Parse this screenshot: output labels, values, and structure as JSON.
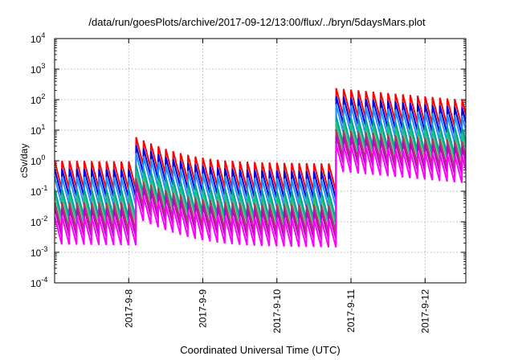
{
  "chart_data": {
    "type": "line",
    "title": "/data/run/goesPlots/archive/2017-09-12/13:00/flux/../bryn/5daysMars.plot",
    "xlabel": "Coordinated Universal Time (UTC)",
    "ylabel": "cSv/day",
    "yscale": "log",
    "ylim_exp": [
      -4,
      4
    ],
    "y_ticks": [
      {
        "base": "10",
        "exp": "-4"
      },
      {
        "base": "10",
        "exp": "-3"
      },
      {
        "base": "10",
        "exp": "-2"
      },
      {
        "base": "10",
        "exp": "-1"
      },
      {
        "base": "10",
        "exp": "0"
      },
      {
        "base": "10",
        "exp": "1"
      },
      {
        "base": "10",
        "exp": "2"
      },
      {
        "base": "10",
        "exp": "3"
      },
      {
        "base": "10",
        "exp": "4"
      }
    ],
    "xlim_days": [
      -1.0,
      4.55
    ],
    "x_ticks": [
      {
        "label": "2017-9-8",
        "day": 0
      },
      {
        "label": "2017-9-9",
        "day": 1
      },
      {
        "label": "2017-9-10",
        "day": 2
      },
      {
        "label": "2017-9-11",
        "day": 3
      },
      {
        "label": "2017-9-12",
        "day": 4
      }
    ],
    "grid": true,
    "sawtooth": {
      "period_days": 0.1,
      "events": [
        {
          "day": 0.0,
          "amp": 8
        },
        {
          "day": 2.75,
          "amp": 300
        }
      ],
      "decay_per_day": [
        -0.25,
        1.5
      ],
      "base_flux": [
        0.45,
        0.3,
        0.25,
        0.08,
        0.06,
        0.035,
        0.022,
        0.012
      ]
    },
    "series": [
      {
        "color": "#ff0000",
        "scale": 1.0
      },
      {
        "color": "#0000e0",
        "scale": 0.55
      },
      {
        "color": "#1e90ff",
        "scale": 0.3
      },
      {
        "color": "#00a0a0",
        "scale": 0.12
      },
      {
        "color": "#20c080",
        "scale": 0.08
      },
      {
        "color": "#a04060",
        "scale": 0.045
      },
      {
        "color": "#c000c0",
        "scale": 0.028
      },
      {
        "color": "#ff00ff",
        "scale": 0.015
      }
    ]
  }
}
